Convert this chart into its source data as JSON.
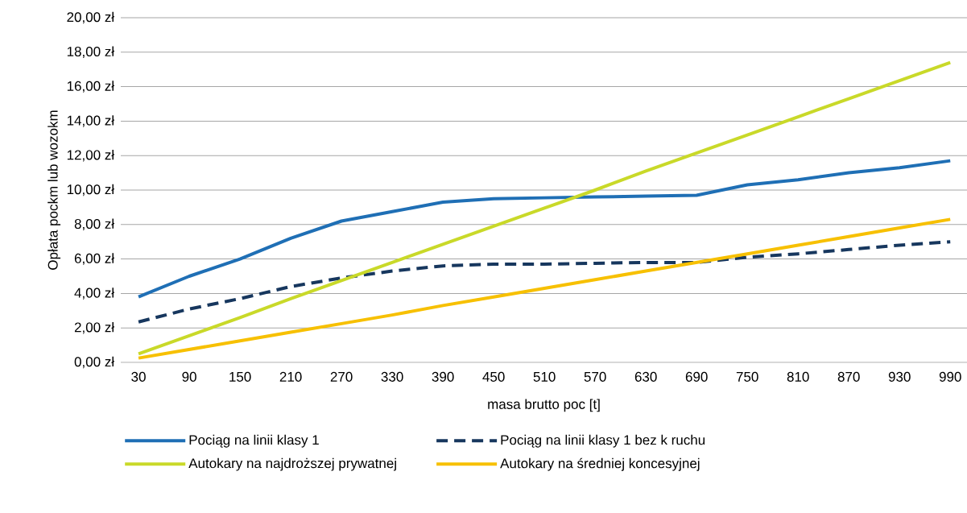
{
  "chart_data": {
    "type": "line",
    "xlabel": "masa brutto poc [t]",
    "ylabel": "Opłata pockm lub wozokm",
    "categories": [
      "30",
      "90",
      "150",
      "210",
      "270",
      "330",
      "390",
      "450",
      "510",
      "570",
      "630",
      "690",
      "750",
      "810",
      "870",
      "930",
      "990"
    ],
    "ylim": [
      0,
      20
    ],
    "yticks": [
      {
        "value": 0,
        "label": "0,00 zł"
      },
      {
        "value": 2,
        "label": "2,00 zł"
      },
      {
        "value": 4,
        "label": "4,00 zł"
      },
      {
        "value": 6,
        "label": "6,00 zł"
      },
      {
        "value": 8,
        "label": "8,00 zł"
      },
      {
        "value": 10,
        "label": "10,00 zł"
      },
      {
        "value": 12,
        "label": "12,00 zł"
      },
      {
        "value": 14,
        "label": "14,00 zł"
      },
      {
        "value": 16,
        "label": "16,00 zł"
      },
      {
        "value": 18,
        "label": "18,00 zł"
      },
      {
        "value": 20,
        "label": "20,00 zł"
      }
    ],
    "grid": "y",
    "legend": "bottom",
    "series": [
      {
        "name": "Pociąg na linii klasy 1",
        "color": "#1f6fb5",
        "values": [
          3.8,
          5.0,
          6.0,
          7.2,
          8.2,
          8.75,
          9.3,
          9.5,
          9.55,
          9.6,
          9.65,
          9.7,
          10.3,
          10.6,
          11.0,
          11.3,
          11.7
        ]
      },
      {
        "name": "Pociąg na linii klasy 1 bez k ruchu",
        "color": "#17375e",
        "line_style": "dashed",
        "values": [
          2.35,
          3.1,
          3.7,
          4.4,
          4.9,
          5.3,
          5.6,
          5.7,
          5.7,
          5.75,
          5.8,
          5.8,
          6.1,
          6.3,
          6.55,
          6.8,
          7.0
        ]
      },
      {
        "name": "Autokary na najdroższej prywatnej",
        "color": "#c9d929",
        "values": [
          0.5,
          1.55,
          2.6,
          3.7,
          4.75,
          5.8,
          6.85,
          7.9,
          8.95,
          10.0,
          11.1,
          12.15,
          13.2,
          14.25,
          15.3,
          16.35,
          17.4
        ]
      },
      {
        "name": "Autokary na średniej koncesyjnej",
        "color": "#f7c000",
        "values": [
          0.25,
          0.75,
          1.25,
          1.75,
          2.25,
          2.75,
          3.3,
          3.8,
          4.3,
          4.8,
          5.3,
          5.8,
          6.3,
          6.8,
          7.3,
          7.8,
          8.3
        ]
      }
    ]
  }
}
